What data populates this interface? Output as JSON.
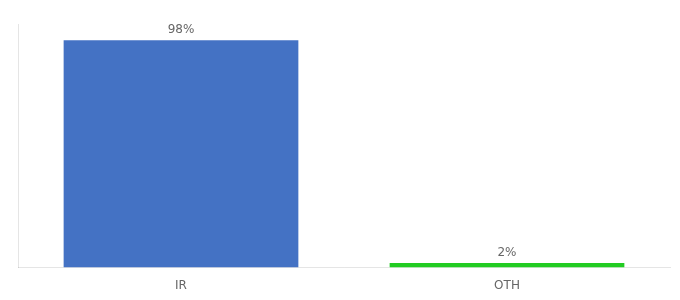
{
  "chart_data": {
    "type": "bar",
    "categories": [
      "IR",
      "OTH"
    ],
    "values": [
      98,
      2
    ],
    "colors": [
      "#4472C4",
      "#22CC22"
    ],
    "data_labels": true,
    "value_labels": [
      "98%",
      "2%"
    ],
    "ylim": [
      0,
      105
    ],
    "grid": false,
    "tick_labels": "x"
  }
}
